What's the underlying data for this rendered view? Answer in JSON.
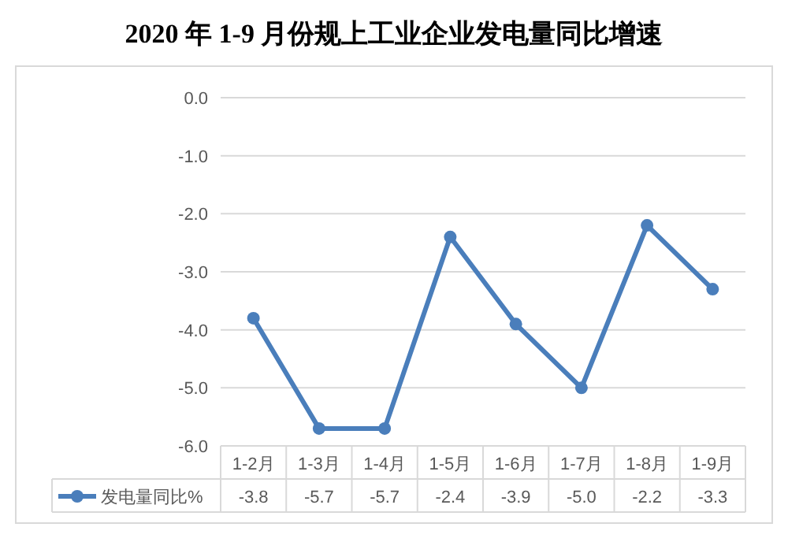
{
  "chart_data": {
    "type": "line",
    "title": "2020 年 1-9 月份规上工业企业发电量同比增速",
    "categories": [
      "1-2月",
      "1-3月",
      "1-4月",
      "1-5月",
      "1-6月",
      "1-7月",
      "1-8月",
      "1-9月"
    ],
    "series": [
      {
        "name": "发电量同比%",
        "color": "#4a7ebb",
        "values": [
          -3.8,
          -5.7,
          -5.7,
          -2.4,
          -3.9,
          -5.0,
          -2.2,
          -3.3
        ],
        "value_labels": [
          "-3.8",
          "-5.7",
          "-5.7",
          "-2.4",
          "-3.9",
          "-5.0",
          "-2.2",
          "-3.3"
        ]
      }
    ],
    "ylim": [
      -6,
      0
    ],
    "yticks": [
      {
        "value": 0,
        "label": "0.0"
      },
      {
        "value": -1,
        "label": "-1.0"
      },
      {
        "value": -2,
        "label": "-2.0"
      },
      {
        "value": -3,
        "label": "-3.0"
      },
      {
        "value": -4,
        "label": "-4.0"
      },
      {
        "value": -5,
        "label": "-5.0"
      },
      {
        "value": -6,
        "label": "-6.0"
      }
    ],
    "grid": "y",
    "marker": "circle",
    "line_style": "solid",
    "legend": "bottom left"
  }
}
